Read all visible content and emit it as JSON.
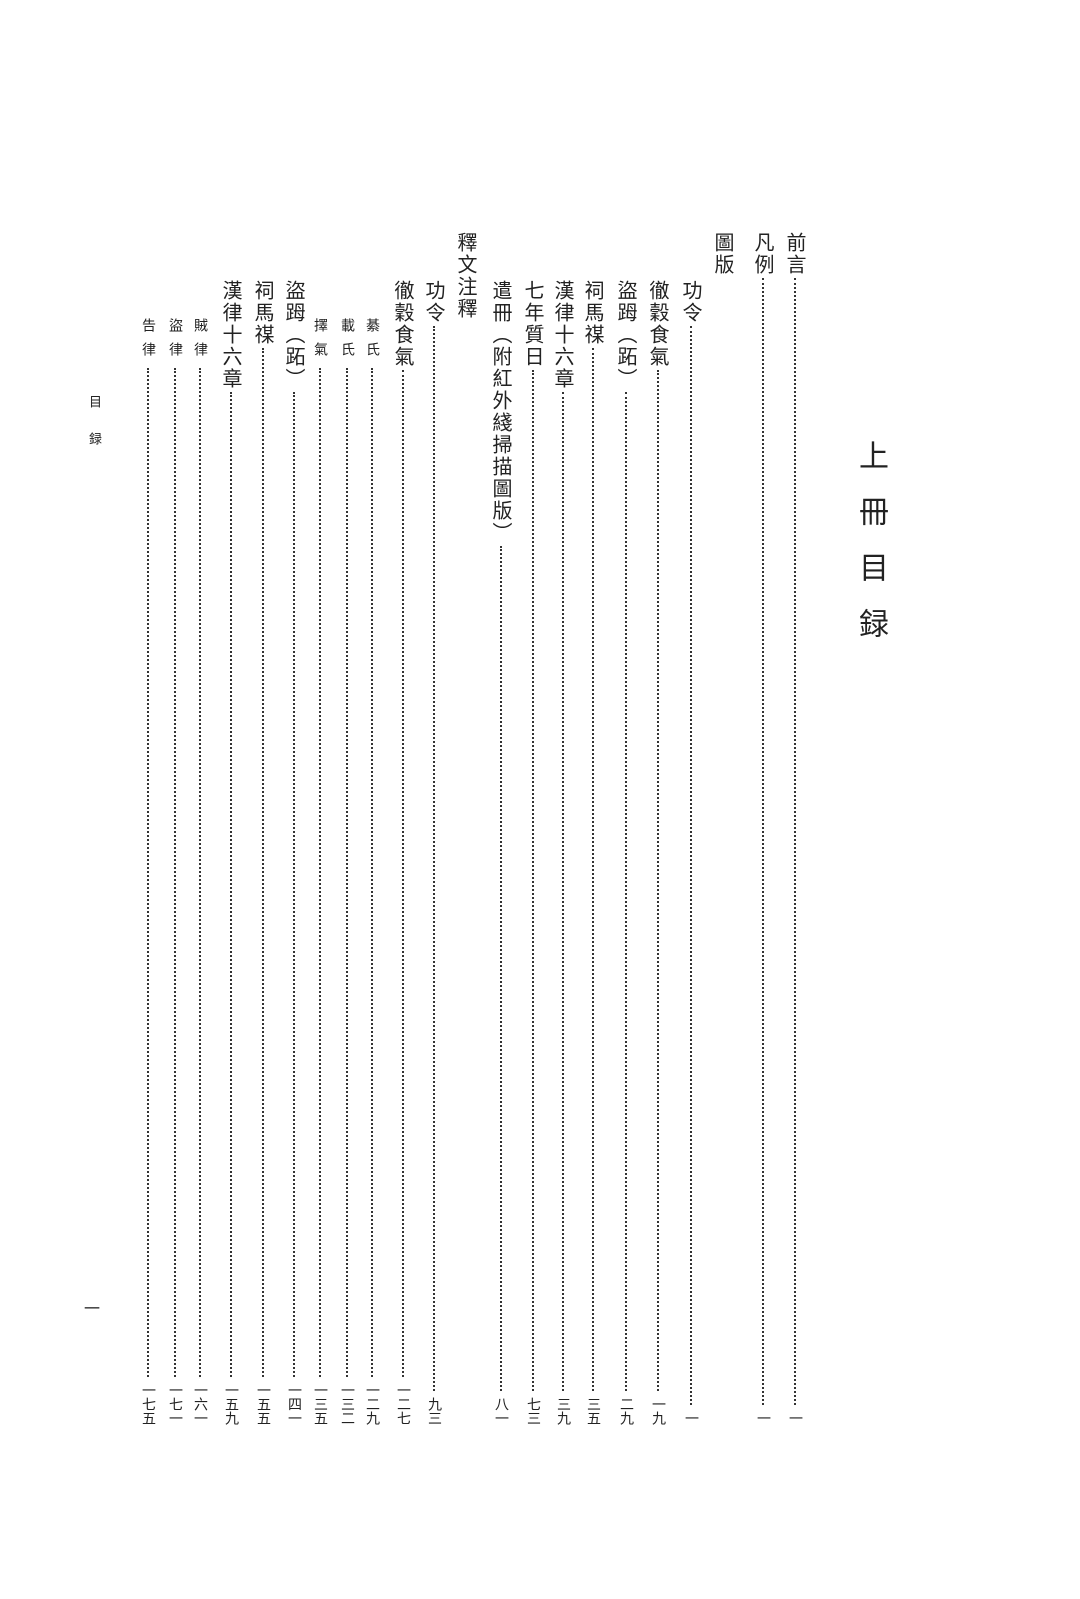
{
  "title": "上冊目録",
  "running_head": "目録",
  "folio": "一",
  "entries": [
    {
      "label": "前言",
      "page": "一"
    },
    {
      "label": "凡例",
      "page": "一"
    },
    {
      "label": "圖版",
      "page": ""
    },
    {
      "label": "功令",
      "page": "一"
    },
    {
      "label": "徹穀食氣",
      "page": "一九"
    },
    {
      "label": "盜𧿹（跖）",
      "page": "二九"
    },
    {
      "label": "祠馬禖",
      "page": "三五"
    },
    {
      "label": "漢律十六章",
      "page": "三九"
    },
    {
      "label": "七年質日",
      "page": "七三"
    },
    {
      "label": "遣冊（附紅外綫掃描圖版）",
      "page": "八一"
    },
    {
      "label": "釋文注釋",
      "page": ""
    },
    {
      "label": "功令",
      "page": "九三"
    },
    {
      "label": "徹穀食氣",
      "page": "一二七"
    },
    {
      "label": "綦氏",
      "page": "一二九"
    },
    {
      "label": "載氏",
      "page": "一三二"
    },
    {
      "label": "擇氣",
      "page": "一三五"
    },
    {
      "label": "盜𧿹（跖）",
      "page": "一四一"
    },
    {
      "label": "祠馬禖",
      "page": "一五五"
    },
    {
      "label": "漢律十六章",
      "page": "一五九"
    },
    {
      "label": "賊律",
      "page": "一六一"
    },
    {
      "label": "盜律",
      "page": "一七一"
    },
    {
      "label": "告律",
      "page": "一七五"
    }
  ]
}
